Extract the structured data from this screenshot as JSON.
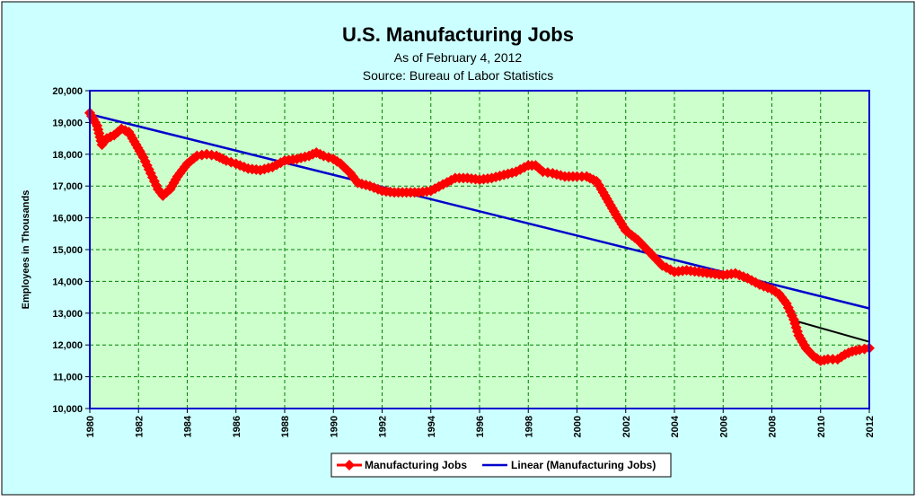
{
  "chart_data": {
    "type": "line",
    "title": "U.S. Manufacturing Jobs",
    "subtitle_lines": [
      "As of February 4, 2012",
      "Source: Bureau of Labor Statistics"
    ],
    "ylabel": "Employees in Thousands",
    "xlabel": "",
    "xlim": [
      1980,
      2012
    ],
    "ylim": [
      10000,
      20000
    ],
    "y_ticks": [
      10000,
      11000,
      12000,
      13000,
      14000,
      15000,
      16000,
      17000,
      18000,
      19000,
      20000
    ],
    "y_tick_labels": [
      "10,000",
      "11,000",
      "12,000",
      "13,000",
      "14,000",
      "15,000",
      "16,000",
      "17,000",
      "18,000",
      "19,000",
      "20,000"
    ],
    "x_ticks": [
      1980,
      1982,
      1984,
      1986,
      1988,
      1990,
      1992,
      1994,
      1996,
      1998,
      2000,
      2002,
      2004,
      2006,
      2008,
      2010,
      2012
    ],
    "x_tick_labels": [
      "1980",
      "1982",
      "1984",
      "1986",
      "1988",
      "1990",
      "1992",
      "1994",
      "1996",
      "1998",
      "2000",
      "2002",
      "2004",
      "2006",
      "2008",
      "2010",
      "2012"
    ],
    "grid": true,
    "legend_position": "bottom-center",
    "series": [
      {
        "name": "Manufacturing Jobs",
        "color": "#ff0000",
        "marker": "diamond",
        "x": [
          1980.0,
          1980.3,
          1980.5,
          1980.7,
          1981.0,
          1981.3,
          1981.6,
          1981.9,
          1982.2,
          1982.5,
          1982.8,
          1983.0,
          1983.3,
          1983.6,
          1984.0,
          1984.4,
          1984.8,
          1985.2,
          1985.6,
          1986.0,
          1986.5,
          1987.0,
          1987.5,
          1988.0,
          1988.5,
          1989.0,
          1989.3,
          1989.6,
          1990.0,
          1990.3,
          1990.7,
          1991.0,
          1991.5,
          1992.0,
          1992.5,
          1993.0,
          1993.5,
          1994.0,
          1994.5,
          1995.0,
          1995.5,
          1996.0,
          1996.5,
          1997.0,
          1997.5,
          1998.0,
          1998.3,
          1998.6,
          1999.0,
          1999.5,
          2000.0,
          2000.4,
          2000.8,
          2001.0,
          2001.3,
          2001.6,
          2002.0,
          2002.5,
          2003.0,
          2003.5,
          2004.0,
          2004.5,
          2005.0,
          2005.5,
          2006.0,
          2006.5,
          2007.0,
          2007.5,
          2008.0,
          2008.3,
          2008.6,
          2008.9,
          2009.1,
          2009.4,
          2009.7,
          2010.0,
          2010.3,
          2010.7,
          2011.0,
          2011.3,
          2011.6,
          2012.0
        ],
        "values": [
          19300,
          18900,
          18300,
          18500,
          18600,
          18800,
          18700,
          18300,
          17900,
          17400,
          16900,
          16700,
          16900,
          17300,
          17700,
          17950,
          18000,
          17950,
          17800,
          17700,
          17550,
          17500,
          17600,
          17800,
          17850,
          17950,
          18050,
          17950,
          17850,
          17700,
          17400,
          17100,
          17000,
          16850,
          16800,
          16800,
          16800,
          16850,
          17050,
          17250,
          17250,
          17200,
          17250,
          17350,
          17450,
          17650,
          17650,
          17450,
          17400,
          17300,
          17300,
          17300,
          17150,
          16900,
          16500,
          16100,
          15600,
          15300,
          14900,
          14500,
          14300,
          14350,
          14300,
          14250,
          14200,
          14250,
          14100,
          13900,
          13750,
          13600,
          13300,
          12800,
          12300,
          11900,
          11650,
          11500,
          11550,
          11550,
          11700,
          11800,
          11850,
          11900
        ]
      },
      {
        "name": "Linear (Manufacturing Jobs)",
        "color": "#0000cc",
        "marker": "none",
        "x": [
          1980,
          2012
        ],
        "values": [
          19260,
          13150
        ]
      }
    ],
    "annotations": [
      {
        "type": "line",
        "color": "#000000",
        "x": [
          2009.0,
          2012.0
        ],
        "values": [
          12750,
          12100
        ]
      }
    ]
  }
}
